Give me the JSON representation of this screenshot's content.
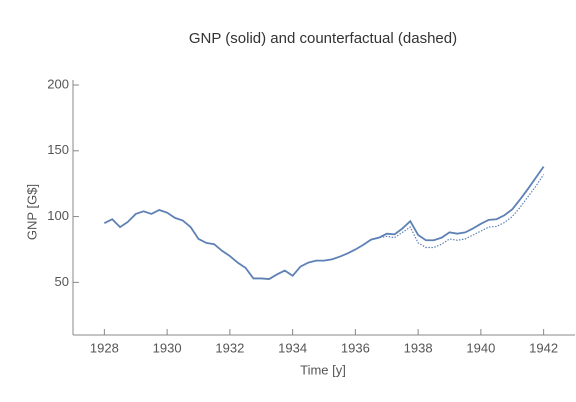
{
  "chart_data": {
    "type": "line",
    "title": "GNP (solid) and counterfactual (dashed)",
    "xlabel": "Time [y]",
    "ylabel": "GNP [G$]",
    "x": [
      1928,
      1928.25,
      1928.5,
      1928.75,
      1929,
      1929.25,
      1929.5,
      1929.75,
      1930,
      1930.25,
      1930.5,
      1930.75,
      1931,
      1931.25,
      1931.5,
      1931.75,
      1932,
      1932.25,
      1932.5,
      1932.75,
      1933,
      1933.25,
      1933.5,
      1933.75,
      1934,
      1934.25,
      1934.5,
      1934.75,
      1935,
      1935.25,
      1935.5,
      1935.75,
      1936,
      1936.25,
      1936.5,
      1936.75,
      1937,
      1937.25,
      1937.5,
      1937.75,
      1938,
      1938.25,
      1938.5,
      1938.75,
      1939,
      1939.25,
      1939.5,
      1939.75,
      1940,
      1940.25,
      1940.5,
      1940.75,
      1941,
      1941.25,
      1941.5,
      1941.75,
      1942
    ],
    "series": [
      {
        "color": "#5e81b5",
        "style": "solid",
        "values": [
          95,
          98,
          92,
          96,
          102,
          104,
          102,
          105,
          103,
          99,
          97,
          92,
          83,
          80,
          79,
          74,
          70,
          65,
          61,
          53,
          53,
          52.5,
          56,
          59,
          55,
          62,
          65,
          66.5,
          66.5,
          67.5,
          69.5,
          72,
          75,
          78.5,
          82.5,
          84,
          87,
          86.5,
          91,
          96.5,
          86,
          82,
          82,
          84,
          88,
          87,
          88,
          91,
          94.5,
          97.5,
          98,
          101,
          105.5,
          113,
          121,
          129.5,
          138
        ]
      },
      {
        "color": "#5e81b5",
        "style": "dotted",
        "values": [
          null,
          null,
          null,
          null,
          null,
          null,
          null,
          null,
          null,
          null,
          null,
          null,
          null,
          null,
          null,
          null,
          null,
          null,
          null,
          null,
          null,
          null,
          null,
          null,
          null,
          null,
          null,
          null,
          null,
          null,
          null,
          null,
          null,
          null,
          82.5,
          84,
          85,
          84,
          88,
          92,
          80,
          76.5,
          76.5,
          79,
          83,
          82,
          83,
          86,
          89,
          92,
          92.5,
          95.5,
          100,
          107,
          115,
          123,
          132
        ]
      }
    ],
    "xlim": [
      1927,
      1943
    ],
    "xticks": [
      1928,
      1930,
      1932,
      1934,
      1936,
      1938,
      1940,
      1942
    ],
    "ylim": [
      10,
      200
    ],
    "yticks": [
      50,
      100,
      150,
      200
    ]
  }
}
